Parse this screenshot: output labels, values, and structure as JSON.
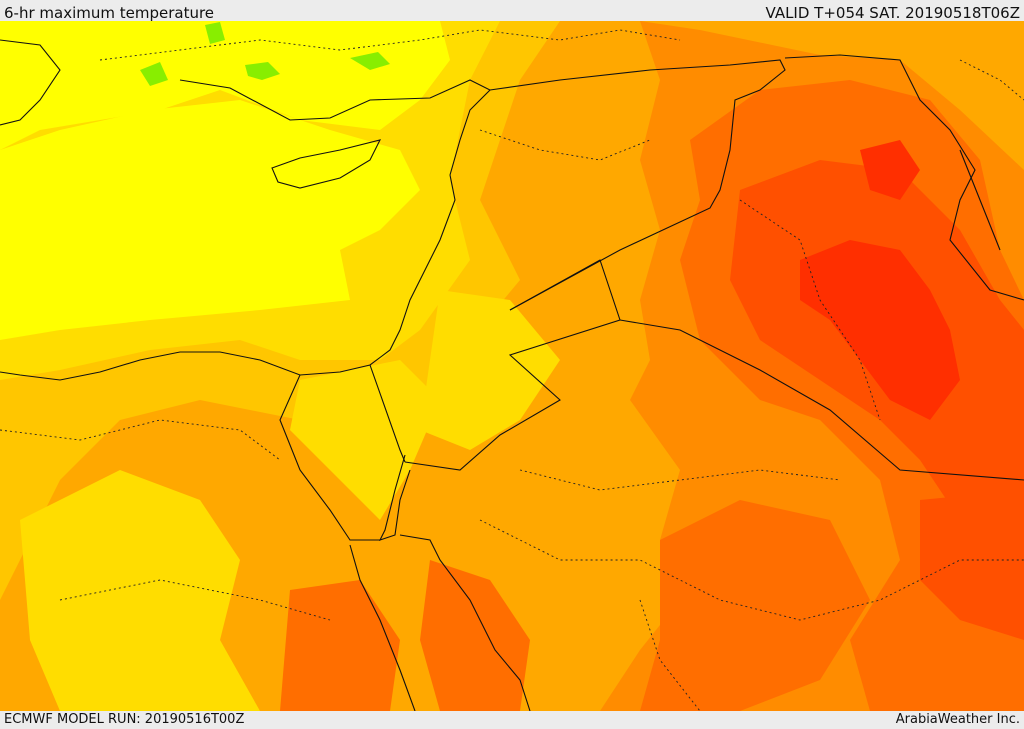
{
  "header": {
    "title": "6-hr maximum temperature",
    "valid_time": "VALID T+054 SAT. 20190518T06Z"
  },
  "footer": {
    "model_run": "ECMWF MODEL RUN: 20190516T00Z",
    "credit": "ArabiaWeather Inc."
  },
  "palette": {
    "pale_yellow": "#ffff00",
    "yellow_gold": "#ffdd00",
    "gold": "#ffc600",
    "light_orange": "#ffa800",
    "orange": "#ff8c00",
    "dark_orange": "#ff6e00",
    "red_orange": "#ff5000",
    "red": "#ff2f00",
    "green": "#88ee00"
  }
}
